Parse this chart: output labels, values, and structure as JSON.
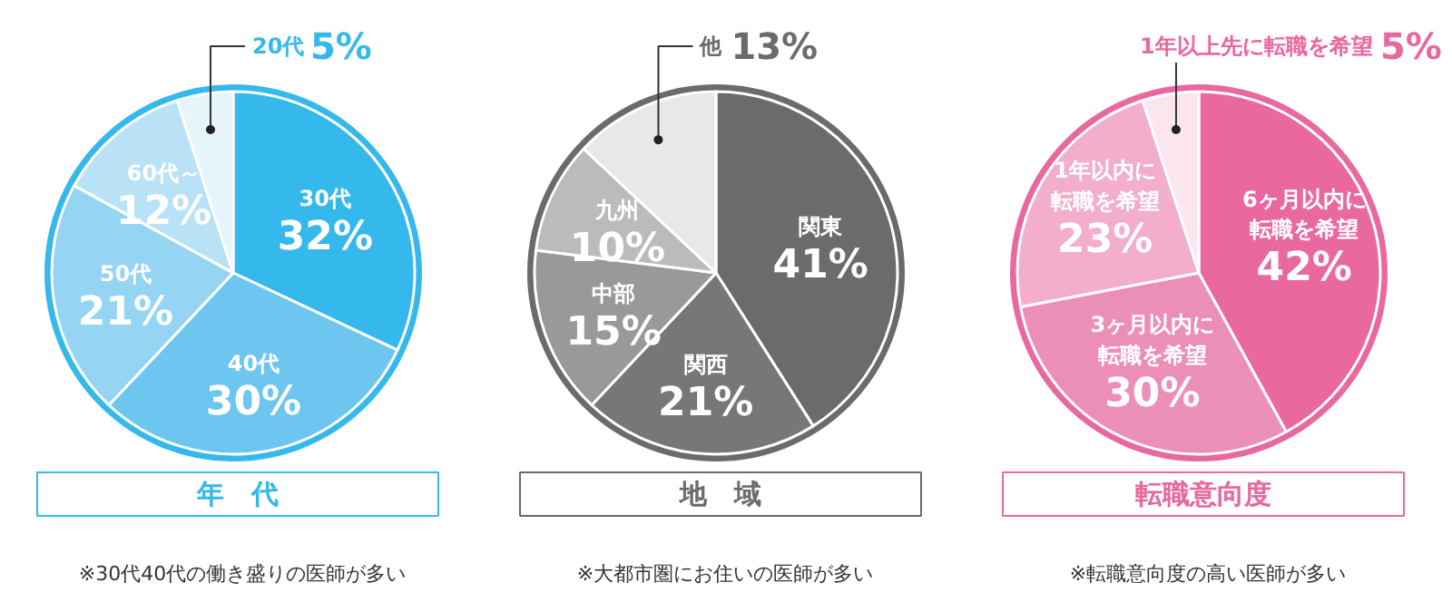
{
  "chart_data": [
    {
      "type": "pie",
      "title": "年　代",
      "categories": [
        "30代",
        "40代",
        "50代",
        "60代～",
        "20代"
      ],
      "values": [
        32,
        30,
        21,
        12,
        5
      ],
      "value_labels": [
        "32%",
        "30%",
        "21%",
        "12%",
        "5%"
      ],
      "colors": [
        "#35b8ec",
        "#6cc6f0",
        "#95d4f3",
        "#b9e2f7",
        "#e6f4fc"
      ],
      "annotations": [
        "※30代40代の働き盛りの医師が多い"
      ]
    },
    {
      "type": "pie",
      "title": "地　域",
      "categories": [
        "関東",
        "関西",
        "中部",
        "九州",
        "他"
      ],
      "values": [
        41,
        21,
        15,
        10,
        13
      ],
      "value_labels": [
        "41%",
        "21%",
        "15%",
        "10%",
        "13%"
      ],
      "colors": [
        "#6b6b6b",
        "#777777",
        "#999999",
        "#bbbbbb",
        "#e8e8e8"
      ],
      "annotations": [
        "※大都市圏にお住いの医師が多い"
      ]
    },
    {
      "type": "pie",
      "title": "転職意向度",
      "categories": [
        "6ヶ月以内に転職を希望",
        "3ヶ月以内に転職を希望",
        "1年以内に転職を希望",
        "1年以上先に転職を希望"
      ],
      "values": [
        42,
        30,
        23,
        5
      ],
      "value_labels": [
        "42%",
        "30%",
        "23%",
        "5%"
      ],
      "colors": [
        "#e8689f",
        "#ec8fb8",
        "#f2aecb",
        "#fbe6ef"
      ],
      "annotations": [
        "※転職意向度の高い医師が多い"
      ]
    }
  ]
}
